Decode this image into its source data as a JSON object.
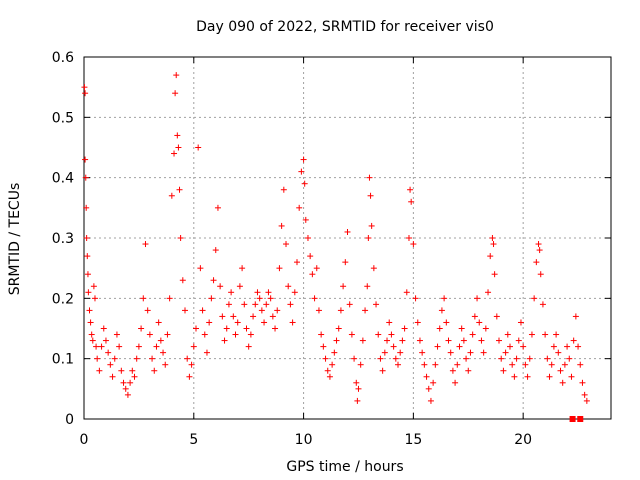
{
  "chart_data": {
    "type": "scatter",
    "title": "Day 090 of 2022, SRMTID for receiver vis0",
    "xlabel": "GPS time / hours",
    "ylabel": "SRMTID / TECUs",
    "xlim": [
      0,
      24
    ],
    "ylim": [
      0,
      0.6
    ],
    "xticks": [
      0,
      5,
      10,
      15,
      20
    ],
    "yticks": [
      0,
      0.1,
      0.2,
      0.3,
      0.4,
      0.5,
      0.6
    ],
    "xtick_labels": [
      "0",
      "5",
      "10",
      "15",
      "20"
    ],
    "ytick_labels": [
      "0",
      "0.1",
      "0.2",
      "0.3",
      "0.4",
      "0.5",
      "0.6"
    ],
    "grid": true,
    "marker": "+",
    "color": "#ff0000",
    "series": [
      {
        "name": "SRMTID",
        "points": [
          [
            0.02,
            0.55
          ],
          [
            0.05,
            0.54
          ],
          [
            0.05,
            0.43
          ],
          [
            0.08,
            0.4
          ],
          [
            0.1,
            0.35
          ],
          [
            0.12,
            0.3
          ],
          [
            0.15,
            0.27
          ],
          [
            0.18,
            0.24
          ],
          [
            0.2,
            0.21
          ],
          [
            0.25,
            0.18
          ],
          [
            0.3,
            0.16
          ],
          [
            0.35,
            0.14
          ],
          [
            0.4,
            0.13
          ],
          [
            0.45,
            0.22
          ],
          [
            0.5,
            0.2
          ],
          [
            0.55,
            0.12
          ],
          [
            0.6,
            0.1
          ],
          [
            0.7,
            0.08
          ],
          [
            0.8,
            0.12
          ],
          [
            0.9,
            0.15
          ],
          [
            1.0,
            0.13
          ],
          [
            1.1,
            0.11
          ],
          [
            1.2,
            0.09
          ],
          [
            1.3,
            0.07
          ],
          [
            1.4,
            0.1
          ],
          [
            1.5,
            0.14
          ],
          [
            1.6,
            0.12
          ],
          [
            1.7,
            0.08
          ],
          [
            1.8,
            0.06
          ],
          [
            1.9,
            0.05
          ],
          [
            2.0,
            0.04
          ],
          [
            2.1,
            0.06
          ],
          [
            2.2,
            0.08
          ],
          [
            2.3,
            0.07
          ],
          [
            2.4,
            0.1
          ],
          [
            2.5,
            0.12
          ],
          [
            2.6,
            0.15
          ],
          [
            2.7,
            0.2
          ],
          [
            2.8,
            0.29
          ],
          [
            2.9,
            0.18
          ],
          [
            3.0,
            0.14
          ],
          [
            3.1,
            0.1
          ],
          [
            3.2,
            0.08
          ],
          [
            3.3,
            0.12
          ],
          [
            3.4,
            0.16
          ],
          [
            3.5,
            0.13
          ],
          [
            3.6,
            0.11
          ],
          [
            3.7,
            0.09
          ],
          [
            3.8,
            0.14
          ],
          [
            3.9,
            0.2
          ],
          [
            4.0,
            0.37
          ],
          [
            4.1,
            0.44
          ],
          [
            4.15,
            0.54
          ],
          [
            4.2,
            0.57
          ],
          [
            4.25,
            0.47
          ],
          [
            4.3,
            0.45
          ],
          [
            4.35,
            0.38
          ],
          [
            4.4,
            0.3
          ],
          [
            4.5,
            0.23
          ],
          [
            4.6,
            0.18
          ],
          [
            4.7,
            0.1
          ],
          [
            4.8,
            0.07
          ],
          [
            4.9,
            0.09
          ],
          [
            5.0,
            0.12
          ],
          [
            5.1,
            0.15
          ],
          [
            5.2,
            0.45
          ],
          [
            5.3,
            0.25
          ],
          [
            5.4,
            0.18
          ],
          [
            5.5,
            0.14
          ],
          [
            5.6,
            0.11
          ],
          [
            5.7,
            0.16
          ],
          [
            5.8,
            0.2
          ],
          [
            5.9,
            0.23
          ],
          [
            6.0,
            0.28
          ],
          [
            6.1,
            0.35
          ],
          [
            6.2,
            0.22
          ],
          [
            6.3,
            0.17
          ],
          [
            6.4,
            0.13
          ],
          [
            6.5,
            0.15
          ],
          [
            6.6,
            0.19
          ],
          [
            6.7,
            0.21
          ],
          [
            6.8,
            0.17
          ],
          [
            6.9,
            0.14
          ],
          [
            7.0,
            0.16
          ],
          [
            7.1,
            0.22
          ],
          [
            7.2,
            0.25
          ],
          [
            7.3,
            0.19
          ],
          [
            7.4,
            0.15
          ],
          [
            7.5,
            0.12
          ],
          [
            7.6,
            0.14
          ],
          [
            7.7,
            0.17
          ],
          [
            7.8,
            0.19
          ],
          [
            7.9,
            0.21
          ],
          [
            8.0,
            0.2
          ],
          [
            8.1,
            0.18
          ],
          [
            8.2,
            0.16
          ],
          [
            8.3,
            0.19
          ],
          [
            8.4,
            0.21
          ],
          [
            8.5,
            0.2
          ],
          [
            8.6,
            0.17
          ],
          [
            8.7,
            0.15
          ],
          [
            8.8,
            0.18
          ],
          [
            8.9,
            0.25
          ],
          [
            9.0,
            0.32
          ],
          [
            9.1,
            0.38
          ],
          [
            9.2,
            0.29
          ],
          [
            9.3,
            0.22
          ],
          [
            9.4,
            0.19
          ],
          [
            9.5,
            0.16
          ],
          [
            9.6,
            0.21
          ],
          [
            9.7,
            0.26
          ],
          [
            9.8,
            0.35
          ],
          [
            9.9,
            0.41
          ],
          [
            10.0,
            0.43
          ],
          [
            10.05,
            0.39
          ],
          [
            10.1,
            0.33
          ],
          [
            10.2,
            0.3
          ],
          [
            10.3,
            0.27
          ],
          [
            10.4,
            0.24
          ],
          [
            10.5,
            0.2
          ],
          [
            10.6,
            0.25
          ],
          [
            10.7,
            0.18
          ],
          [
            10.8,
            0.14
          ],
          [
            10.9,
            0.12
          ],
          [
            11.0,
            0.1
          ],
          [
            11.1,
            0.08
          ],
          [
            11.2,
            0.07
          ],
          [
            11.3,
            0.09
          ],
          [
            11.4,
            0.11
          ],
          [
            11.5,
            0.13
          ],
          [
            11.6,
            0.15
          ],
          [
            11.7,
            0.18
          ],
          [
            11.8,
            0.22
          ],
          [
            11.9,
            0.26
          ],
          [
            12.0,
            0.31
          ],
          [
            12.1,
            0.19
          ],
          [
            12.2,
            0.14
          ],
          [
            12.3,
            0.1
          ],
          [
            12.4,
            0.06
          ],
          [
            12.45,
            0.03
          ],
          [
            12.5,
            0.05
          ],
          [
            12.6,
            0.09
          ],
          [
            12.7,
            0.13
          ],
          [
            12.8,
            0.18
          ],
          [
            12.9,
            0.22
          ],
          [
            12.95,
            0.3
          ],
          [
            13.0,
            0.4
          ],
          [
            13.05,
            0.37
          ],
          [
            13.1,
            0.32
          ],
          [
            13.2,
            0.25
          ],
          [
            13.3,
            0.19
          ],
          [
            13.4,
            0.14
          ],
          [
            13.5,
            0.1
          ],
          [
            13.6,
            0.08
          ],
          [
            13.7,
            0.11
          ],
          [
            13.8,
            0.13
          ],
          [
            13.9,
            0.16
          ],
          [
            14.0,
            0.14
          ],
          [
            14.1,
            0.12
          ],
          [
            14.2,
            0.1
          ],
          [
            14.3,
            0.09
          ],
          [
            14.4,
            0.11
          ],
          [
            14.5,
            0.13
          ],
          [
            14.6,
            0.15
          ],
          [
            14.7,
            0.21
          ],
          [
            14.8,
            0.3
          ],
          [
            14.85,
            0.38
          ],
          [
            14.9,
            0.36
          ],
          [
            15.0,
            0.29
          ],
          [
            15.1,
            0.2
          ],
          [
            15.2,
            0.16
          ],
          [
            15.3,
            0.13
          ],
          [
            15.4,
            0.11
          ],
          [
            15.5,
            0.09
          ],
          [
            15.6,
            0.07
          ],
          [
            15.7,
            0.05
          ],
          [
            15.8,
            0.03
          ],
          [
            15.9,
            0.06
          ],
          [
            16.0,
            0.09
          ],
          [
            16.1,
            0.12
          ],
          [
            16.2,
            0.15
          ],
          [
            16.3,
            0.18
          ],
          [
            16.4,
            0.2
          ],
          [
            16.5,
            0.16
          ],
          [
            16.6,
            0.13
          ],
          [
            16.7,
            0.11
          ],
          [
            16.8,
            0.08
          ],
          [
            16.9,
            0.06
          ],
          [
            17.0,
            0.09
          ],
          [
            17.1,
            0.12
          ],
          [
            17.2,
            0.15
          ],
          [
            17.3,
            0.13
          ],
          [
            17.4,
            0.1
          ],
          [
            17.5,
            0.08
          ],
          [
            17.6,
            0.11
          ],
          [
            17.7,
            0.14
          ],
          [
            17.8,
            0.17
          ],
          [
            17.9,
            0.2
          ],
          [
            18.0,
            0.16
          ],
          [
            18.1,
            0.13
          ],
          [
            18.2,
            0.11
          ],
          [
            18.3,
            0.15
          ],
          [
            18.4,
            0.21
          ],
          [
            18.5,
            0.27
          ],
          [
            18.6,
            0.3
          ],
          [
            18.65,
            0.29
          ],
          [
            18.7,
            0.24
          ],
          [
            18.8,
            0.17
          ],
          [
            18.9,
            0.13
          ],
          [
            19.0,
            0.1
          ],
          [
            19.1,
            0.08
          ],
          [
            19.2,
            0.11
          ],
          [
            19.3,
            0.14
          ],
          [
            19.4,
            0.12
          ],
          [
            19.5,
            0.09
          ],
          [
            19.6,
            0.07
          ],
          [
            19.7,
            0.1
          ],
          [
            19.8,
            0.13
          ],
          [
            19.9,
            0.16
          ],
          [
            20.0,
            0.12
          ],
          [
            20.1,
            0.09
          ],
          [
            20.2,
            0.07
          ],
          [
            20.3,
            0.1
          ],
          [
            20.4,
            0.14
          ],
          [
            20.5,
            0.2
          ],
          [
            20.6,
            0.26
          ],
          [
            20.7,
            0.29
          ],
          [
            20.75,
            0.28
          ],
          [
            20.8,
            0.24
          ],
          [
            20.9,
            0.19
          ],
          [
            21.0,
            0.14
          ],
          [
            21.1,
            0.1
          ],
          [
            21.2,
            0.07
          ],
          [
            21.3,
            0.09
          ],
          [
            21.4,
            0.12
          ],
          [
            21.5,
            0.14
          ],
          [
            21.6,
            0.11
          ],
          [
            21.7,
            0.08
          ],
          [
            21.8,
            0.06
          ],
          [
            21.9,
            0.09
          ],
          [
            22.0,
            0.12
          ],
          [
            22.1,
            0.1
          ],
          [
            22.2,
            0.07
          ],
          [
            22.3,
            0.13
          ],
          [
            22.4,
            0.17
          ],
          [
            22.5,
            0.12
          ],
          [
            22.6,
            0.09
          ],
          [
            22.7,
            0.06
          ],
          [
            22.8,
            0.04
          ],
          [
            22.9,
            0.03
          ]
        ]
      }
    ],
    "special_markers": [
      [
        22.25,
        0.0
      ],
      [
        22.6,
        0.0
      ]
    ]
  }
}
